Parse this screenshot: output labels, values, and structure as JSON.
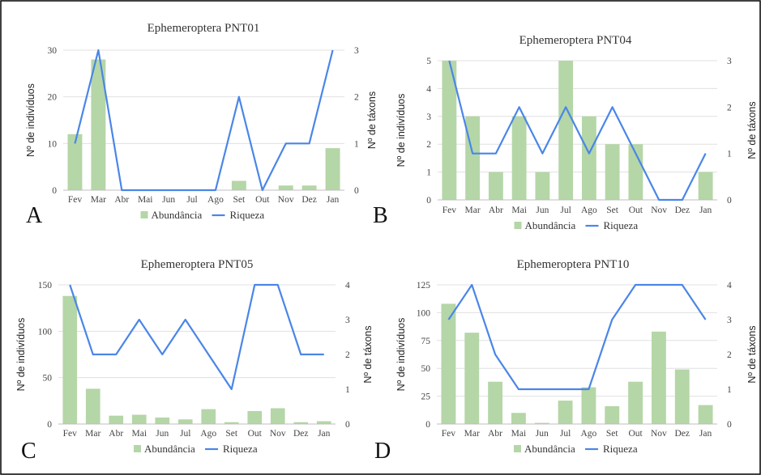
{
  "legend": {
    "bar_label": "Abundância",
    "line_label": "Riqueza"
  },
  "colors": {
    "bar": "#b5d6a7",
    "line": "#4a86e8",
    "grid": "#e0e0e0",
    "border": "#000000"
  },
  "chart_data": [
    {
      "type": "bar",
      "title": "Ephemeroptera PNT01",
      "letter": "A",
      "ylabel": "Nº de indivíduos",
      "y2label": "Nº de táxons",
      "categories": [
        "Fev",
        "Mar",
        "Abr",
        "Mai",
        "Jun",
        "Jul",
        "Ago",
        "Set",
        "Out",
        "Nov",
        "Dez",
        "Jan"
      ],
      "ylim": [
        0,
        30
      ],
      "yticks": [
        0,
        10,
        20,
        30
      ],
      "y2lim": [
        0,
        3
      ],
      "y2ticks": [
        0,
        1,
        2,
        3
      ],
      "grid": true,
      "legend_position": "bottom",
      "series": [
        {
          "name": "Abundância",
          "type": "bar",
          "axis": "left",
          "values": [
            12,
            28,
            0,
            0,
            0,
            0,
            0,
            2,
            0,
            1,
            1,
            9
          ]
        },
        {
          "name": "Riqueza",
          "type": "line",
          "axis": "right",
          "values": [
            1,
            3,
            0,
            0,
            0,
            0,
            0,
            2,
            0,
            1,
            1,
            3
          ]
        }
      ]
    },
    {
      "type": "bar",
      "title": "Ephemeroptera PNT04",
      "letter": "B",
      "ylabel": "Nº de indivíduos",
      "y2label": "Nº de táxons",
      "categories": [
        "Fev",
        "Mar",
        "Abr",
        "Mai",
        "Jun",
        "Jul",
        "Ago",
        "Set",
        "Out",
        "Nov",
        "Dez",
        "Jan"
      ],
      "ylim": [
        0,
        5
      ],
      "yticks": [
        0,
        1,
        2,
        3,
        4,
        5
      ],
      "y2lim": [
        0,
        3
      ],
      "y2ticks": [
        0,
        1,
        2,
        3
      ],
      "grid": true,
      "legend_position": "bottom",
      "series": [
        {
          "name": "Abundância",
          "type": "bar",
          "axis": "left",
          "values": [
            5,
            3,
            1,
            3,
            1,
            5,
            3,
            2,
            2,
            0,
            0,
            1
          ]
        },
        {
          "name": "Riqueza",
          "type": "line",
          "axis": "right",
          "values": [
            3,
            1,
            1,
            2,
            1,
            2,
            1,
            2,
            1,
            0,
            0,
            1
          ]
        }
      ]
    },
    {
      "type": "bar",
      "title": "Ephemeroptera PNT05",
      "letter": "C",
      "ylabel": "Nº de indivíduos",
      "y2label": "Nº de táxons",
      "categories": [
        "Fev",
        "Mar",
        "Abr",
        "Mai",
        "Jun",
        "Jul",
        "Ago",
        "Set",
        "Out",
        "Nov",
        "Dez",
        "Jan"
      ],
      "ylim": [
        0,
        150
      ],
      "yticks": [
        0,
        50,
        100,
        150
      ],
      "y2lim": [
        0,
        4
      ],
      "y2ticks": [
        0,
        1,
        2,
        3,
        4
      ],
      "grid": true,
      "legend_position": "bottom",
      "series": [
        {
          "name": "Abundância",
          "type": "bar",
          "axis": "left",
          "values": [
            138,
            38,
            9,
            10,
            7,
            5,
            16,
            2,
            14,
            17,
            2,
            3
          ]
        },
        {
          "name": "Riqueza",
          "type": "line",
          "axis": "right",
          "values": [
            4,
            2,
            2,
            3,
            2,
            3,
            2,
            1,
            4,
            4,
            2,
            2
          ]
        }
      ]
    },
    {
      "type": "bar",
      "title": "Ephemeroptera PNT10",
      "letter": "D",
      "ylabel": "Nº de indivíduos",
      "y2label": "Nº de táxons",
      "categories": [
        "Fev",
        "Mar",
        "Abr",
        "Mai",
        "Jun",
        "Jul",
        "Ago",
        "Set",
        "Out",
        "Nov",
        "Dez",
        "Jan"
      ],
      "ylim": [
        0,
        125
      ],
      "yticks": [
        0,
        25,
        50,
        75,
        100,
        125
      ],
      "y2lim": [
        0,
        4
      ],
      "y2ticks": [
        0,
        1,
        2,
        3,
        4
      ],
      "grid": true,
      "legend_position": "bottom",
      "series": [
        {
          "name": "Abundância",
          "type": "bar",
          "axis": "left",
          "values": [
            108,
            82,
            38,
            10,
            1,
            21,
            33,
            16,
            38,
            83,
            49,
            17
          ]
        },
        {
          "name": "Riqueza",
          "type": "line",
          "axis": "right",
          "values": [
            3,
            4,
            2,
            1,
            1,
            1,
            1,
            3,
            4,
            4,
            4,
            3
          ]
        }
      ]
    }
  ]
}
